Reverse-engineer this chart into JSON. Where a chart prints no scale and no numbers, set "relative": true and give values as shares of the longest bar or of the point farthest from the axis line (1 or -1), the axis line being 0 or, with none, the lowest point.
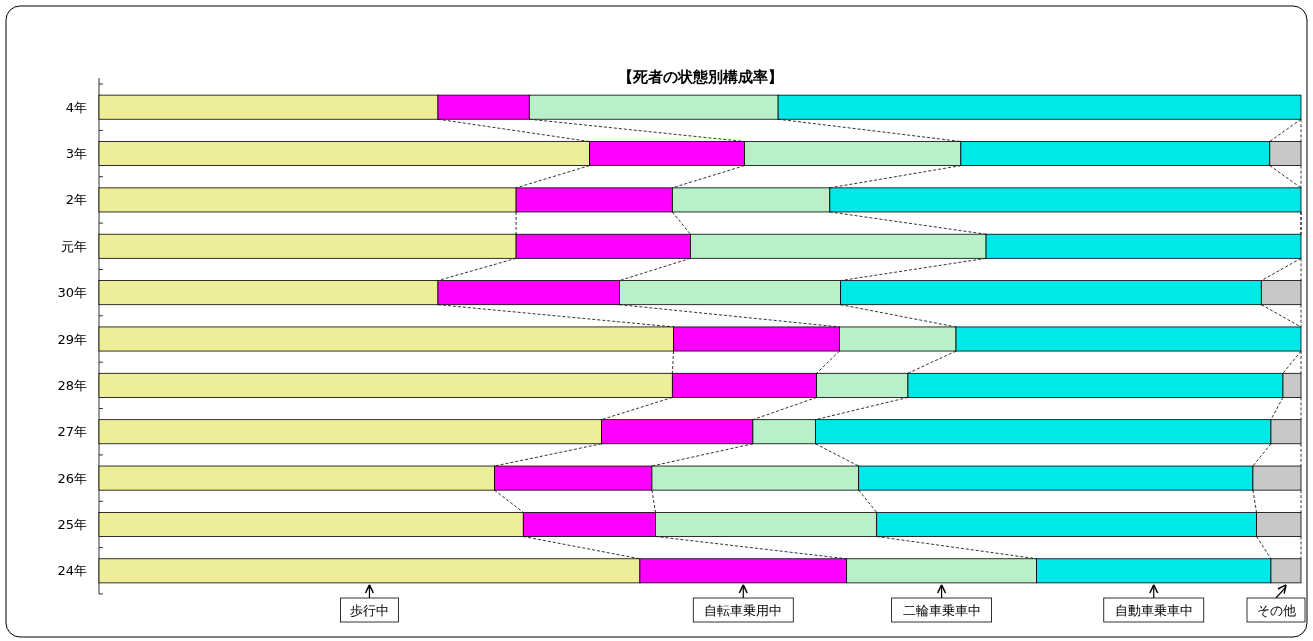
{
  "chart_data": {
    "type": "bar",
    "title": "【死者の状態別構成率】",
    "orientation": "horizontal",
    "stacked": true,
    "relative": true,
    "legend": "bottom",
    "categories": [
      "4年",
      "3年",
      "2年",
      "元年",
      "30年",
      "29年",
      "28年",
      "27年",
      "26年",
      "25年",
      "24年"
    ],
    "series": [
      {
        "name": "歩行中",
        "color": "#eeee99",
        "values": [
          0.282,
          0.408,
          0.347,
          0.347,
          0.282,
          0.478,
          0.477,
          0.418,
          0.329,
          0.353,
          0.45
        ]
      },
      {
        "name": "自転車乗用中",
        "color": "#ff00ff",
        "values": [
          0.076,
          0.129,
          0.13,
          0.145,
          0.151,
          0.138,
          0.12,
          0.126,
          0.131,
          0.11,
          0.172
        ]
      },
      {
        "name": "二輪車乗車中",
        "color": "#b8f0c8",
        "values": [
          0.207,
          0.18,
          0.131,
          0.246,
          0.184,
          0.097,
          0.076,
          0.052,
          0.172,
          0.184,
          0.158
        ]
      },
      {
        "name": "自動車乗車中",
        "color": "#00e8e8",
        "values": [
          0.435,
          0.257,
          0.392,
          0.262,
          0.35,
          0.287,
          0.312,
          0.379,
          0.328,
          0.316,
          0.195
        ]
      },
      {
        "name": "その他",
        "color": "#c8c8c8",
        "values": [
          0,
          0.026,
          0,
          0,
          0.033,
          0,
          0.015,
          0.025,
          0.04,
          0.037,
          0.025
        ]
      }
    ]
  }
}
